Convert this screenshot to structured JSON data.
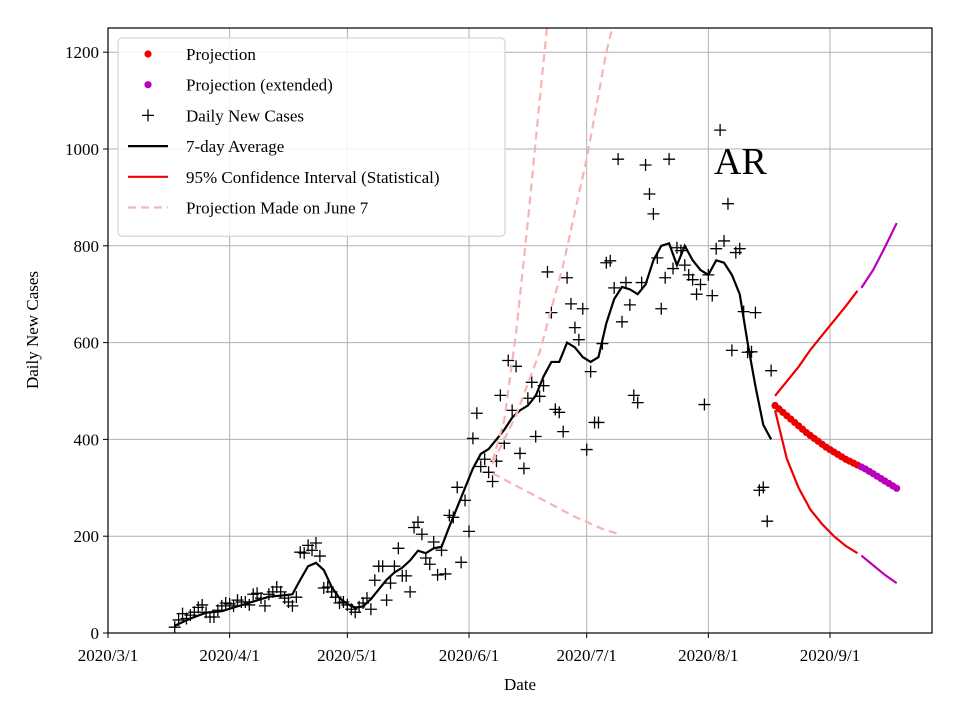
{
  "chart_data": {
    "type": "line",
    "annotation": "AR",
    "x_label": "Date",
    "y_label": "Daily New Cases",
    "xlim": [
      "2020-03-01",
      "2020-09-27"
    ],
    "xticks": [
      {
        "value": "2020-03-01",
        "label": "2020/3/1"
      },
      {
        "value": "2020-04-01",
        "label": "2020/4/1"
      },
      {
        "value": "2020-05-01",
        "label": "2020/5/1"
      },
      {
        "value": "2020-06-01",
        "label": "2020/6/1"
      },
      {
        "value": "2020-07-01",
        "label": "2020/7/1"
      },
      {
        "value": "2020-08-01",
        "label": "2020/8/1"
      },
      {
        "value": "2020-09-01",
        "label": "2020/9/1"
      }
    ],
    "ylim": [
      0,
      1250
    ],
    "yticks": [
      0,
      200,
      400,
      600,
      800,
      1000,
      1200
    ],
    "grid": true,
    "legend": "upper left",
    "series": [
      {
        "name": "Projection",
        "color": "#ee0000",
        "marker": "dot",
        "x": [
          "2020-08-18",
          "2020-08-19",
          "2020-08-20",
          "2020-08-21",
          "2020-08-22",
          "2020-08-23",
          "2020-08-24",
          "2020-08-25",
          "2020-08-26",
          "2020-08-27",
          "2020-08-28",
          "2020-08-29",
          "2020-08-30",
          "2020-08-31",
          "2020-09-01",
          "2020-09-02",
          "2020-09-03",
          "2020-09-04",
          "2020-09-05",
          "2020-09-06",
          "2020-09-07",
          "2020-09-08"
        ],
        "values": [
          470,
          463,
          456,
          449,
          442,
          435,
          428,
          421,
          414,
          408,
          402,
          396,
          390,
          384,
          379,
          374,
          369,
          364,
          359,
          355,
          351,
          347
        ]
      },
      {
        "name": "Projection (extended)",
        "color": "#bb00bb",
        "marker": "dot",
        "x": [
          "2020-09-09",
          "2020-09-10",
          "2020-09-11",
          "2020-09-12",
          "2020-09-13",
          "2020-09-14",
          "2020-09-15",
          "2020-09-16",
          "2020-09-17",
          "2020-09-18"
        ],
        "values": [
          343,
          339,
          334,
          329,
          324,
          319,
          314,
          309,
          304,
          299
        ]
      },
      {
        "name": "Daily New Cases",
        "color": "#000000",
        "marker": "plus",
        "x": [
          "2020-03-18",
          "2020-03-19",
          "2020-03-20",
          "2020-03-21",
          "2020-03-22",
          "2020-03-23",
          "2020-03-24",
          "2020-03-25",
          "2020-03-26",
          "2020-03-27",
          "2020-03-28",
          "2020-03-29",
          "2020-03-30",
          "2020-03-31",
          "2020-04-01",
          "2020-04-02",
          "2020-04-03",
          "2020-04-04",
          "2020-04-05",
          "2020-04-06",
          "2020-04-07",
          "2020-04-08",
          "2020-04-09",
          "2020-04-10",
          "2020-04-11",
          "2020-04-12",
          "2020-04-13",
          "2020-04-14",
          "2020-04-15",
          "2020-04-16",
          "2020-04-17",
          "2020-04-18",
          "2020-04-19",
          "2020-04-20",
          "2020-04-21",
          "2020-04-22",
          "2020-04-23",
          "2020-04-24",
          "2020-04-25",
          "2020-04-26",
          "2020-04-27",
          "2020-04-28",
          "2020-04-29",
          "2020-04-30",
          "2020-05-01",
          "2020-05-02",
          "2020-05-03",
          "2020-05-04",
          "2020-05-05",
          "2020-05-06",
          "2020-05-07",
          "2020-05-08",
          "2020-05-09",
          "2020-05-10",
          "2020-05-11",
          "2020-05-12",
          "2020-05-13",
          "2020-05-14",
          "2020-05-15",
          "2020-05-16",
          "2020-05-17",
          "2020-05-18",
          "2020-05-19",
          "2020-05-20",
          "2020-05-21",
          "2020-05-22",
          "2020-05-23",
          "2020-05-24",
          "2020-05-25",
          "2020-05-26",
          "2020-05-27",
          "2020-05-28",
          "2020-05-29",
          "2020-05-30",
          "2020-05-31",
          "2020-06-01",
          "2020-06-02",
          "2020-06-03",
          "2020-06-04",
          "2020-06-05",
          "2020-06-06",
          "2020-06-07",
          "2020-06-08",
          "2020-06-09",
          "2020-06-10",
          "2020-06-11",
          "2020-06-12",
          "2020-06-13",
          "2020-06-14",
          "2020-06-15",
          "2020-06-16",
          "2020-06-17",
          "2020-06-18",
          "2020-06-19",
          "2020-06-20",
          "2020-06-21",
          "2020-06-22",
          "2020-06-23",
          "2020-06-24",
          "2020-06-25",
          "2020-06-26",
          "2020-06-27",
          "2020-06-28",
          "2020-06-29",
          "2020-06-30",
          "2020-07-01",
          "2020-07-02",
          "2020-07-03",
          "2020-07-04",
          "2020-07-05",
          "2020-07-06",
          "2020-07-07",
          "2020-07-08",
          "2020-07-09",
          "2020-07-10",
          "2020-07-11",
          "2020-07-12",
          "2020-07-13",
          "2020-07-14",
          "2020-07-15",
          "2020-07-16",
          "2020-07-17",
          "2020-07-18",
          "2020-07-19",
          "2020-07-20",
          "2020-07-21",
          "2020-07-22",
          "2020-07-23",
          "2020-07-24",
          "2020-07-25",
          "2020-07-26",
          "2020-07-27",
          "2020-07-28",
          "2020-07-29",
          "2020-07-30",
          "2020-07-31",
          "2020-08-01",
          "2020-08-02",
          "2020-08-03",
          "2020-08-04",
          "2020-08-05",
          "2020-08-06",
          "2020-08-07",
          "2020-08-08",
          "2020-08-09",
          "2020-08-10",
          "2020-08-11",
          "2020-08-12",
          "2020-08-13",
          "2020-08-14",
          "2020-08-15",
          "2020-08-16",
          "2020-08-17"
        ],
        "values": [
          12,
          27,
          40,
          30,
          37,
          43,
          53,
          58,
          43,
          33,
          33,
          47,
          56,
          62,
          60,
          56,
          68,
          64,
          64,
          58,
          80,
          82,
          72,
          56,
          80,
          85,
          95,
          85,
          72,
          64,
          56,
          74,
          167,
          165,
          181,
          171,
          186,
          159,
          93,
          95,
          85,
          74,
          62,
          64,
          58,
          49,
          43,
          54,
          62,
          72,
          49,
          109,
          138,
          138,
          68,
          103,
          138,
          175,
          118,
          118,
          85,
          218,
          229,
          204,
          155,
          142,
          188,
          120,
          171,
          122,
          243,
          239,
          301,
          146,
          274,
          210,
          402,
          454,
          344,
          359,
          332,
          313,
          355,
          491,
          392,
          563,
          460,
          551,
          371,
          340,
          485,
          518,
          406,
          489,
          511,
          746,
          662,
          462,
          456,
          416,
          734,
          680,
          631,
          606,
          670,
          379,
          540,
          435,
          435,
          598,
          765,
          769,
          713,
          979,
          643,
          724,
          678,
          491,
          476,
          724,
          967,
          907,
          866,
          775,
          670,
          734,
          979,
          753,
          796,
          790,
          760,
          740,
          730,
          700,
          720,
          472,
          740,
          697,
          794,
          1039,
          810,
          887,
          584,
          786,
          794,
          664,
          580,
          581,
          662,
          295,
          301,
          231,
          542
        ]
      },
      {
        "name": "7-day Average",
        "color": "#000000",
        "line": "solid",
        "x": [
          "2020-03-18",
          "2020-03-22",
          "2020-03-26",
          "2020-03-30",
          "2020-04-03",
          "2020-04-07",
          "2020-04-11",
          "2020-04-15",
          "2020-04-17",
          "2020-04-19",
          "2020-04-21",
          "2020-04-23",
          "2020-04-25",
          "2020-04-27",
          "2020-04-29",
          "2020-05-01",
          "2020-05-03",
          "2020-05-05",
          "2020-05-07",
          "2020-05-09",
          "2020-05-11",
          "2020-05-13",
          "2020-05-15",
          "2020-05-17",
          "2020-05-19",
          "2020-05-21",
          "2020-05-23",
          "2020-05-25",
          "2020-05-27",
          "2020-05-29",
          "2020-05-31",
          "2020-06-02",
          "2020-06-04",
          "2020-06-06",
          "2020-06-08",
          "2020-06-10",
          "2020-06-12",
          "2020-06-14",
          "2020-06-16",
          "2020-06-18",
          "2020-06-20",
          "2020-06-22",
          "2020-06-24",
          "2020-06-26",
          "2020-06-28",
          "2020-06-30",
          "2020-07-02",
          "2020-07-04",
          "2020-07-06",
          "2020-07-08",
          "2020-07-10",
          "2020-07-12",
          "2020-07-14",
          "2020-07-16",
          "2020-07-18",
          "2020-07-20",
          "2020-07-22",
          "2020-07-24",
          "2020-07-26",
          "2020-07-28",
          "2020-07-30",
          "2020-08-01",
          "2020-08-03",
          "2020-08-05",
          "2020-08-07",
          "2020-08-09",
          "2020-08-11",
          "2020-08-13",
          "2020-08-15",
          "2020-08-17"
        ],
        "values": [
          15,
          30,
          42,
          45,
          55,
          65,
          75,
          78,
          80,
          110,
          138,
          145,
          130,
          95,
          72,
          60,
          52,
          55,
          70,
          90,
          110,
          125,
          135,
          150,
          170,
          165,
          175,
          178,
          220,
          260,
          300,
          340,
          370,
          380,
          400,
          420,
          445,
          460,
          470,
          490,
          530,
          560,
          560,
          600,
          590,
          570,
          560,
          570,
          640,
          690,
          715,
          710,
          700,
          720,
          770,
          800,
          805,
          760,
          800,
          770,
          750,
          740,
          770,
          765,
          740,
          700,
          600,
          510,
          430,
          400
        ]
      },
      {
        "name": "95% Confidence Interval (Statistical)",
        "color": "#ee0000",
        "line": "solid",
        "lines": [
          {
            "x": [
              "2020-08-18",
              "2020-08-21",
              "2020-08-24",
              "2020-08-27",
              "2020-08-30",
              "2020-09-02",
              "2020-09-05",
              "2020-09-08"
            ],
            "values": [
              490,
              520,
              550,
              585,
              615,
              645,
              675,
              707
            ]
          },
          {
            "x": [
              "2020-08-18",
              "2020-08-21",
              "2020-08-24",
              "2020-08-27",
              "2020-08-30",
              "2020-09-02",
              "2020-09-05",
              "2020-09-08"
            ],
            "values": [
              460,
              360,
              300,
              255,
              225,
              200,
              180,
              165
            ]
          }
        ]
      },
      {
        "color": "#bb00bb",
        "line": "solid",
        "lines": [
          {
            "x": [
              "2020-09-09",
              "2020-09-12",
              "2020-09-15",
              "2020-09-18"
            ],
            "values": [
              713,
              750,
              797,
              847
            ]
          },
          {
            "x": [
              "2020-09-09",
              "2020-09-12",
              "2020-09-15",
              "2020-09-18"
            ],
            "values": [
              160,
              140,
              120,
              103
            ]
          }
        ]
      },
      {
        "name": "Projection Made on June 7",
        "color": "#f8b4b4",
        "line": "dashed",
        "lines": [
          {
            "x": [
              "2020-06-07",
              "2020-06-10",
              "2020-06-13",
              "2020-06-16",
              "2020-06-19",
              "2020-06-21"
            ],
            "values": [
              355,
              440,
              620,
              850,
              1100,
              1260
            ]
          },
          {
            "x": [
              "2020-06-07",
              "2020-06-13",
              "2020-06-19",
              "2020-06-25",
              "2020-07-01",
              "2020-07-06",
              "2020-07-09"
            ],
            "values": [
              350,
              450,
              580,
              760,
              980,
              1200,
              1300
            ]
          },
          {
            "x": [
              "2020-06-07",
              "2020-06-14",
              "2020-06-21",
              "2020-06-28",
              "2020-07-05",
              "2020-07-09"
            ],
            "values": [
              330,
              300,
              270,
              240,
              215,
              205
            ]
          }
        ]
      }
    ]
  }
}
